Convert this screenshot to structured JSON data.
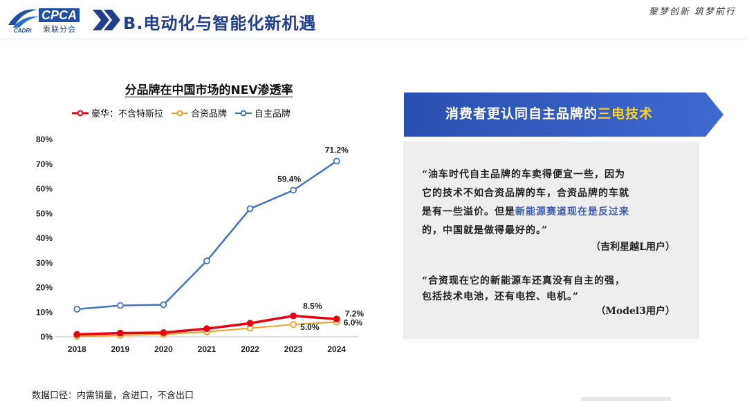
{
  "header": {
    "logo_text": "CPCA",
    "logo_sub": "乘联分会",
    "logo_small": "CADRI",
    "title": "B.电动化与智能化新机遇",
    "slogan": "聚梦创新 筑梦前行"
  },
  "colors": {
    "luxury": "#e60012",
    "joint": "#f0a020",
    "domestic": "#4472c4",
    "banner": "#2f55b4",
    "title": "#1f3f8c"
  },
  "chart_data": {
    "type": "line",
    "title": "分品牌在中国市场的NEV渗透率",
    "categories": [
      "2018",
      "2019",
      "2020",
      "2021",
      "2022",
      "2023",
      "2024"
    ],
    "yticks": [
      "0%",
      "10%",
      "20%",
      "30%",
      "40%",
      "50%",
      "60%",
      "70%",
      "80%"
    ],
    "ylim": [
      0,
      80
    ],
    "series": [
      {
        "name": "豪华：不含特斯拉",
        "key": "luxury",
        "values": [
          1.0,
          1.5,
          1.7,
          3.3,
          5.5,
          8.5,
          7.2
        ]
      },
      {
        "name": "合资品牌",
        "key": "joint",
        "values": [
          0.2,
          0.6,
          1.0,
          2.0,
          3.5,
          5.0,
          6.0
        ]
      },
      {
        "name": "自主品牌",
        "key": "domestic",
        "values": [
          11.2,
          12.7,
          13.0,
          30.8,
          51.9,
          59.4,
          71.2
        ]
      }
    ],
    "data_labels": [
      {
        "series": "domestic",
        "index": 5,
        "text": "59.4%"
      },
      {
        "series": "domestic",
        "index": 6,
        "text": "71.2%"
      },
      {
        "series": "luxury",
        "index": 5,
        "text": "8.5%"
      },
      {
        "series": "luxury",
        "index": 6,
        "text": "7.2%"
      },
      {
        "series": "joint",
        "index": 5,
        "text": "5.0%"
      },
      {
        "series": "joint",
        "index": 6,
        "text": "6.0%"
      }
    ]
  },
  "panel": {
    "banner_pre": "消费者更认同自主品牌的",
    "banner_hl": "三电技术",
    "quote1_line1": "“油车时代自主品牌的车卖得便宜一些，因为",
    "quote1_line2": "它的技术不如合资品牌的车，合资品牌的车就",
    "quote1_line3_a": "是有一些溢价。但是",
    "quote1_line3_b": "新能源赛道现在是反过来",
    "quote1_line4": "的，中国就是做得最好的。”",
    "quote1_source": "（吉利星越L用户）",
    "quote2_line1": "“合资现在它的新能源车还真没有自主的强，",
    "quote2_line2": "包括技术电池，还有电控、电机。”",
    "quote2_source": "（Model3用户）"
  },
  "footnote": "数据口径：内需销量，含进口，不含出口"
}
